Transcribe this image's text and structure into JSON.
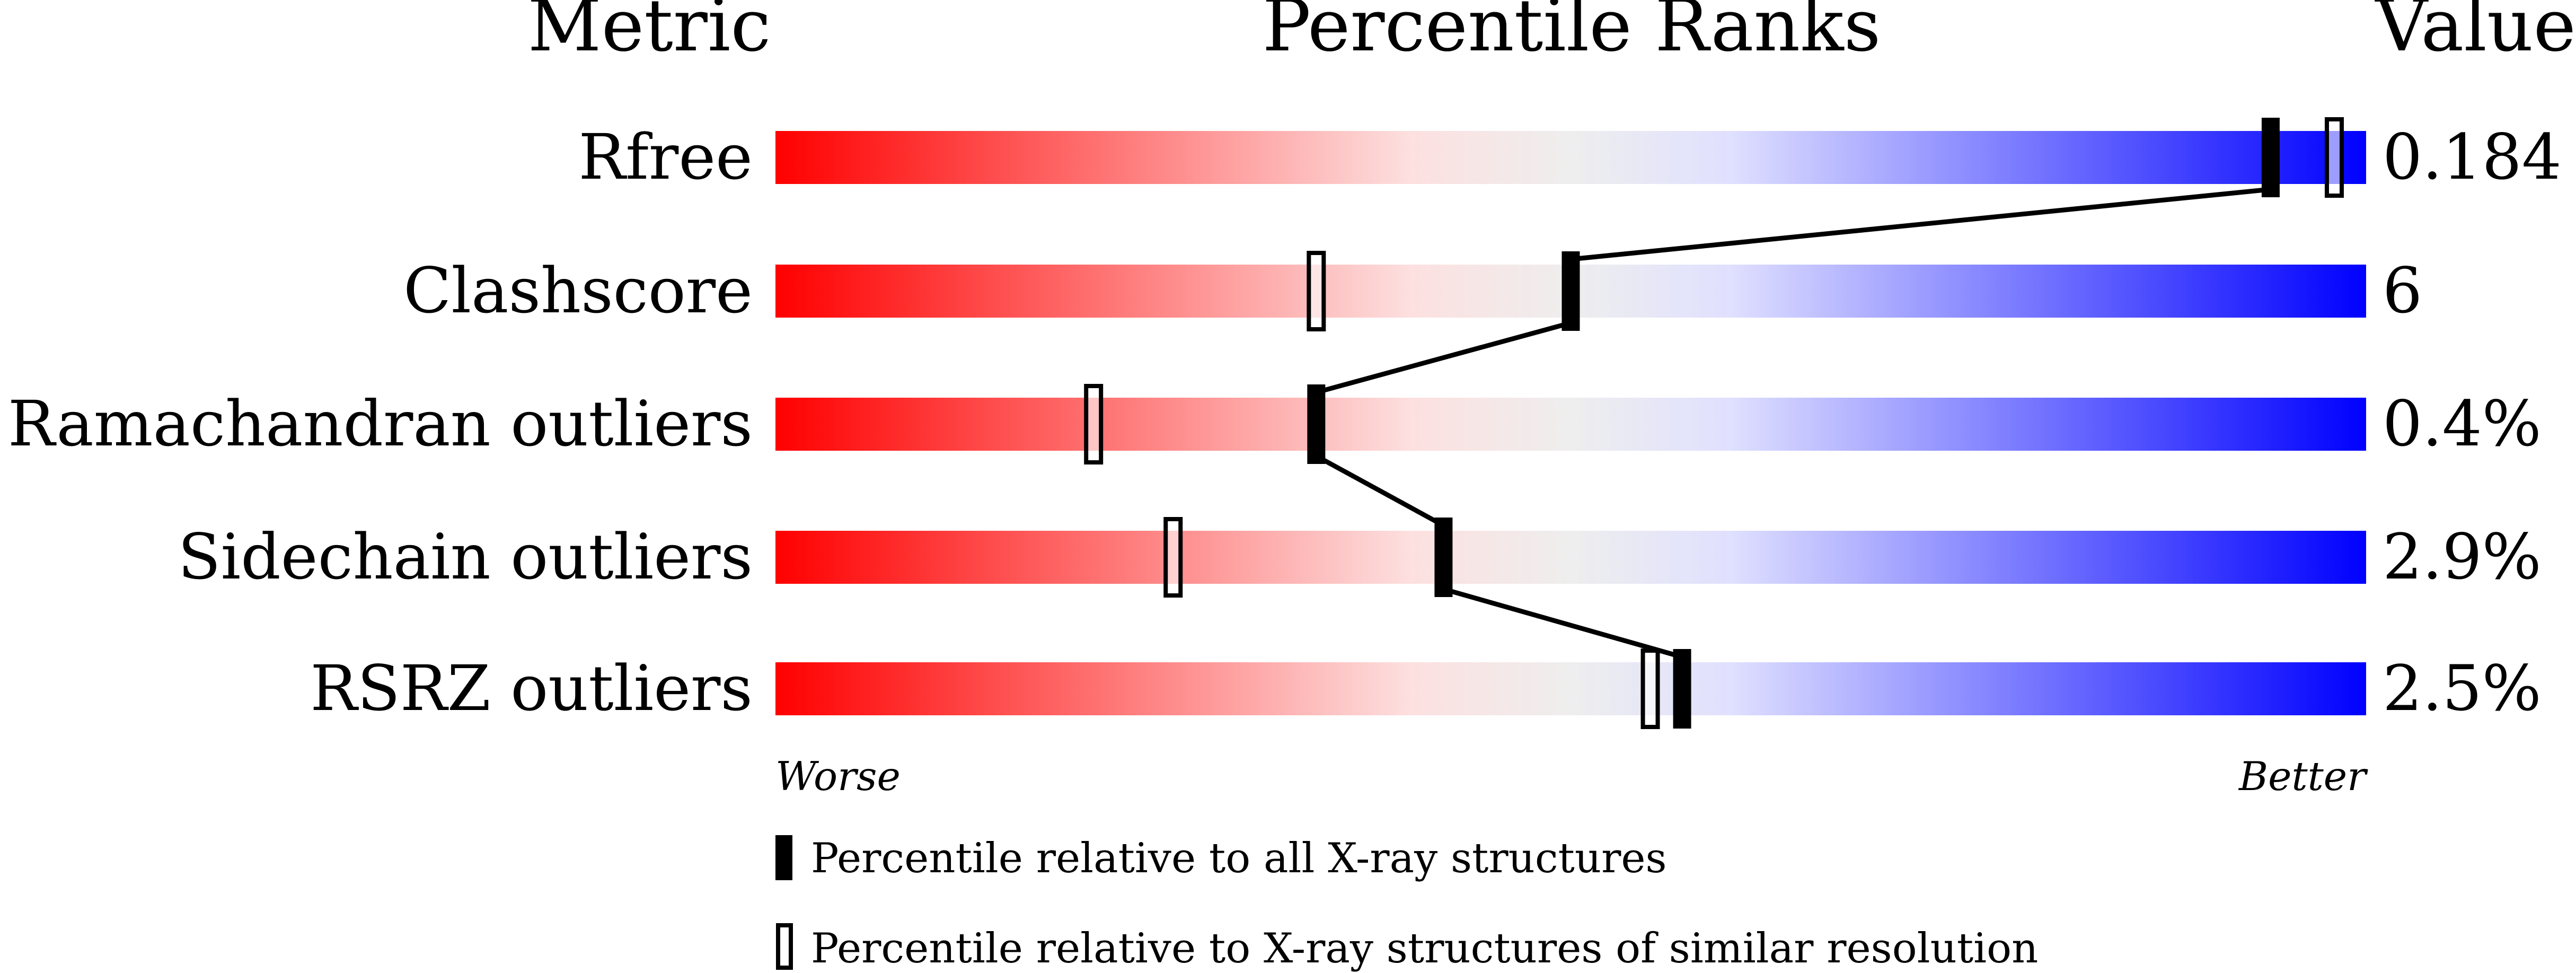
{
  "chart_data": {
    "type": "bar",
    "headers": {
      "metric": "Metric",
      "ranks": "Percentile Ranks",
      "value": "Value"
    },
    "xlim": [
      0,
      100
    ],
    "axis_labels": {
      "left": "Worse",
      "right": "Better"
    },
    "gradient_colors": [
      "#ff0000",
      "#fde0e0",
      "#eeeeee",
      "#e0e0ff",
      "#0000ff"
    ],
    "metrics": [
      {
        "name": "Rfree",
        "value": "0.184",
        "percentile_all": 94,
        "percentile_similar": 98
      },
      {
        "name": "Clashscore",
        "value": "6",
        "percentile_all": 50,
        "percentile_similar": 34
      },
      {
        "name": "Ramachandran outliers",
        "value": "0.4%",
        "percentile_all": 34,
        "percentile_similar": 20
      },
      {
        "name": "Sidechain outliers",
        "value": "2.9%",
        "percentile_all": 42,
        "percentile_similar": 25
      },
      {
        "name": "RSRZ outliers",
        "value": "2.5%",
        "percentile_all": 57,
        "percentile_similar": 55
      }
    ],
    "legend": {
      "filled": "Percentile relative to all X-ray structures",
      "hollow": "Percentile relative to X-ray structures of similar resolution"
    }
  }
}
